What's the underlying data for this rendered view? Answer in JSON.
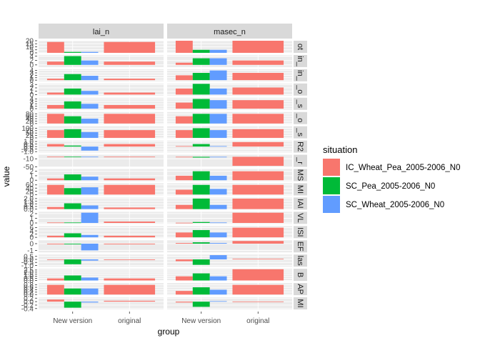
{
  "chart_data": {
    "type": "bar",
    "xlabel": "group",
    "ylabel": "value",
    "categories": [
      "New version",
      "original"
    ],
    "columns": [
      "lai_n",
      "masec_n"
    ],
    "legend": {
      "title": "situation",
      "placement": "right",
      "entries": [
        {
          "name": "IC_Wheat_Pea_2005-2006_N0",
          "color": "#F8766D"
        },
        {
          "name": "SC_Pea_2005-2006_N0",
          "color": "#00BA38"
        },
        {
          "name": "SC_Wheat_2005-2006_N0",
          "color": "#619CFF"
        }
      ]
    },
    "rows": [
      {
        "strip": "ot",
        "ticks": [
          "20",
          "15",
          "10",
          "5",
          "0"
        ],
        "ylim": [
          0,
          20
        ],
        "lai_n": [
          [
            18,
            1.5,
            1.5
          ],
          [
            18
          ]
        ],
        "masec_n": [
          [
            20,
            5,
            5
          ],
          [
            20
          ]
        ]
      },
      {
        "strip": "in_",
        "ticks": [
          "4",
          "2",
          "0"
        ],
        "ylim": [
          -1,
          4.5
        ],
        "lai_n": [
          [
            1.5,
            4,
            2
          ],
          [
            1.5
          ]
        ],
        "masec_n": [
          [
            1,
            3,
            3
          ],
          [
            2
          ]
        ]
      },
      {
        "strip": "in_",
        "ticks": [
          "4",
          "3",
          "2",
          "1",
          "0"
        ],
        "ylim": [
          -0.5,
          4.5
        ],
        "lai_n": [
          [
            0.6,
            2.5,
            1.8
          ],
          [
            0.6
          ]
        ],
        "masec_n": [
          [
            2,
            3,
            4
          ],
          [
            3
          ]
        ]
      },
      {
        "strip": "_o",
        "ticks": [
          "3",
          "2",
          "1",
          "0"
        ],
        "ylim": [
          -0.3,
          3.3
        ],
        "lai_n": [
          [
            0.6,
            1.8,
            1.1
          ],
          [
            0.6
          ]
        ],
        "masec_n": [
          [
            1.8,
            3.2,
            1.8
          ],
          [
            2.1
          ]
        ]
      },
      {
        "strip": "_s",
        "ticks": [
          "4",
          "3",
          "2",
          "1",
          "0"
        ],
        "ylim": [
          -0.5,
          4.5
        ],
        "lai_n": [
          [
            1.5,
            3,
            2
          ],
          [
            1.5
          ]
        ],
        "masec_n": [
          [
            2.5,
            4,
            3.5
          ],
          [
            3.5
          ]
        ]
      },
      {
        "strip": "_o",
        "ticks": [
          "80",
          "60",
          "40",
          "20",
          "0"
        ],
        "ylim": [
          -5,
          95
        ],
        "lai_n": [
          [
            80,
            60,
            40
          ],
          [
            80
          ]
        ],
        "masec_n": [
          [
            60,
            80,
            80
          ],
          [
            80
          ]
        ]
      },
      {
        "strip": "_s",
        "ticks": [
          "100",
          "75",
          "50",
          "25",
          "0"
        ],
        "ylim": [
          -5,
          120
        ],
        "lai_n": [
          [
            80,
            90,
            60
          ],
          [
            80
          ]
        ],
        "masec_n": [
          [
            80,
            100,
            80
          ],
          [
            90
          ]
        ]
      },
      {
        "strip": "R2",
        "ticks": [
          "1.0",
          "0.5",
          "0.0",
          "-0.5",
          "-1.0"
        ],
        "ylim": [
          -1.2,
          1.2
        ],
        "lai_n": [
          [
            0.5,
            0.2,
            -0.8
          ],
          [
            0.5
          ]
        ],
        "masec_n": [
          [
            0.1,
            0.5,
            0.1
          ],
          [
            0.9
          ]
        ]
      },
      {
        "strip": "_r",
        "ticks": [
          "-10",
          "-50"
        ],
        "ylim": [
          -50,
          10
        ],
        "lai_n": [
          [
            0.5,
            0.5,
            0.5
          ],
          [
            0.5
          ]
        ],
        "masec_n": [
          [
            -2,
            -4,
            -2
          ],
          [
            -45
          ]
        ]
      },
      {
        "strip": "MS",
        "ticks": [
          "2",
          "1",
          "0"
        ],
        "ylim": [
          -0.2,
          2.5
        ],
        "lai_n": [
          [
            0.4,
            1.3,
            0.8
          ],
          [
            0.4
          ]
        ],
        "masec_n": [
          [
            1,
            2,
            1
          ],
          [
            2
          ]
        ]
      },
      {
        "strip": "MI",
        "ticks": [
          "60",
          "40",
          "20",
          "0"
        ],
        "ylim": [
          -5,
          70
        ],
        "lai_n": [
          [
            60,
            40,
            45
          ],
          [
            60
          ]
        ],
        "masec_n": [
          [
            30,
            60,
            35
          ],
          [
            60
          ]
        ]
      },
      {
        "strip": "IAI",
        "ticks": [
          "2.0",
          "1.5",
          "1.0",
          "0.5",
          "0.0"
        ],
        "ylim": [
          -0.1,
          2.2
        ],
        "lai_n": [
          [
            0.4,
            1.1,
            0.7
          ],
          [
            0.3
          ]
        ],
        "masec_n": [
          [
            0.8,
            2,
            0.8
          ],
          [
            2
          ]
        ]
      },
      {
        "strip": "VL",
        "ticks": [
          "2",
          "1",
          "0"
        ],
        "ylim": [
          -0.2,
          2.4
        ],
        "lai_n": [
          [
            0.1,
            0.1,
            2.2
          ],
          [
            0.3
          ]
        ],
        "masec_n": [
          [
            0.05,
            0.2,
            0.1
          ],
          [
            2.2
          ]
        ]
      },
      {
        "strip": "ISI",
        "ticks": [
          "6",
          "4",
          "2",
          "0"
        ],
        "ylim": [
          -0.5,
          7
        ],
        "lai_n": [
          [
            1,
            2.5,
            1.5
          ],
          [
            1
          ]
        ],
        "masec_n": [
          [
            3,
            4.5,
            3
          ],
          [
            6
          ]
        ]
      },
      {
        "strip": "EF",
        "ticks": [
          "0",
          "-1"
        ],
        "ylim": [
          -1.3,
          0.5
        ],
        "lai_n": [
          [
            -0.1,
            -0.1,
            -1
          ],
          [
            -0.1
          ]
        ],
        "masec_n": [
          [
            0.1,
            0.2,
            0.1
          ],
          [
            0.4
          ]
        ]
      },
      {
        "strip": "las",
        "ticks": [
          "0.5",
          "0.0",
          "-0.5",
          "-1.0"
        ],
        "ylim": [
          -1.2,
          0.8
        ],
        "lai_n": [
          [
            -0.1,
            -0.8,
            -0.2
          ],
          [
            -0.1
          ]
        ],
        "masec_n": [
          [
            -0.3,
            -0.9,
            0.7
          ],
          [
            0.1
          ]
        ]
      },
      {
        "strip": "B",
        "ticks": [
          "2.5",
          "2.0",
          "1.5",
          "1.0",
          "0.5",
          "0.0"
        ],
        "ylim": [
          -0.1,
          2.8
        ],
        "lai_n": [
          [
            0.5,
            1.2,
            0.7
          ],
          [
            0.5
          ]
        ],
        "masec_n": [
          [
            1,
            1.7,
            1
          ],
          [
            2.7
          ]
        ]
      },
      {
        "strip": "AP",
        "ticks": [
          "0.8",
          "0.6",
          "0.4",
          "0.2",
          "0.0"
        ],
        "ylim": [
          -0.05,
          0.95
        ],
        "lai_n": [
          [
            0.8,
            0.5,
            0.5
          ],
          [
            0.8
          ]
        ],
        "masec_n": [
          [
            0.3,
            0.6,
            0.4
          ],
          [
            0.8
          ]
        ]
      },
      {
        "strip": "MI",
        "ticks": [
          "0.2",
          "0.0",
          "-0.2",
          "-0.4"
        ],
        "ylim": [
          -0.45,
          0.25
        ],
        "lai_n": [
          [
            0.12,
            -0.35,
            -0.05
          ],
          [
            0.05
          ]
        ],
        "masec_n": [
          [
            -0.05,
            -0.3,
            0.03
          ],
          [
            0.01
          ]
        ]
      }
    ]
  }
}
